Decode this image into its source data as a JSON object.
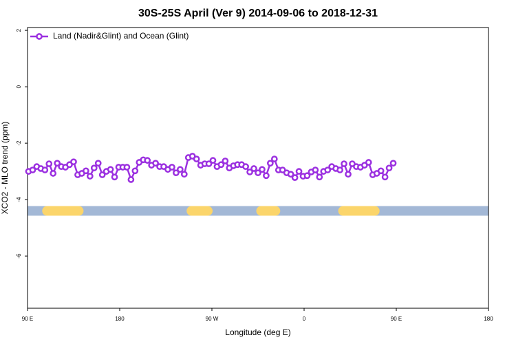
{
  "chart_data": {
    "type": "line",
    "title": "30S-25S April (Ver 9)   2014-09-06 to 2018-12-31",
    "x_label": "Longitude (deg E)",
    "y_label": "XCO2 - MLO trend (ppm)",
    "x": [
      91,
      95,
      99,
      103,
      107,
      111,
      115,
      119,
      123,
      127,
      131,
      135,
      139,
      143,
      147,
      151,
      155,
      159,
      163,
      167,
      171,
      175,
      179,
      183,
      187,
      191,
      195,
      199,
      203,
      207,
      211,
      215,
      219,
      223,
      227,
      231,
      235,
      239,
      243,
      247,
      251,
      255,
      259,
      263,
      267,
      271,
      275,
      279,
      283,
      287,
      291,
      295,
      299,
      303,
      307,
      311,
      315,
      319,
      323,
      327,
      331,
      335,
      339,
      343,
      347,
      351,
      355,
      359,
      363,
      367,
      371,
      375,
      379,
      383,
      387,
      391,
      395,
      399,
      403,
      407,
      411,
      415,
      419,
      423,
      427,
      431,
      435,
      439,
      443,
      447
    ],
    "series": [
      {
        "name": "Land (Nadir&Glint) and Ocean (Glint)",
        "color": "#9b30e0",
        "values": [
          -3.0,
          -2.95,
          -2.83,
          -2.9,
          -2.95,
          -2.73,
          -3.07,
          -2.71,
          -2.83,
          -2.85,
          -2.76,
          -2.66,
          -3.12,
          -3.07,
          -2.98,
          -3.17,
          -2.88,
          -2.71,
          -3.12,
          -3.0,
          -2.93,
          -3.2,
          -2.85,
          -2.85,
          -2.85,
          -3.29,
          -2.98,
          -2.68,
          -2.59,
          -2.61,
          -2.78,
          -2.71,
          -2.83,
          -2.83,
          -2.93,
          -2.85,
          -3.05,
          -2.93,
          -3.1,
          -2.51,
          -2.46,
          -2.56,
          -2.78,
          -2.73,
          -2.73,
          -2.61,
          -2.83,
          -2.76,
          -2.63,
          -2.88,
          -2.8,
          -2.76,
          -2.76,
          -2.83,
          -3.02,
          -2.9,
          -3.05,
          -2.93,
          -3.15,
          -2.71,
          -2.56,
          -2.95,
          -2.95,
          -3.05,
          -3.1,
          -3.22,
          -3.0,
          -3.17,
          -3.15,
          -3.02,
          -2.95,
          -3.2,
          -3.0,
          -2.95,
          -2.83,
          -2.9,
          -2.95,
          -2.73,
          -3.1,
          -2.73,
          -2.83,
          -2.85,
          -2.78,
          -2.68,
          -3.12,
          -3.07,
          -2.98,
          -3.2,
          -2.88,
          -2.71
        ]
      }
    ],
    "xlim": [
      90,
      540
    ],
    "xticks": [
      {
        "value": 90,
        "label": "90 E"
      },
      {
        "value": 180,
        "label": "180"
      },
      {
        "value": 270,
        "label": "90 W"
      },
      {
        "value": 360,
        "label": "0"
      },
      {
        "value": 450,
        "label": "90 E"
      },
      {
        "value": 540,
        "label": "180"
      }
    ],
    "ylim": [
      -7.85,
      2.1
    ],
    "yticks": [
      2,
      0,
      -2,
      -4,
      -6
    ],
    "surface_band": {
      "y": -4.4,
      "ocean_color": "#a3b8d6",
      "land_color": "#fbd56b",
      "land": [
        [
          109,
          140
        ],
        [
          250,
          266
        ],
        [
          318,
          332
        ],
        [
          398,
          429
        ]
      ]
    },
    "legend": "top-left"
  }
}
